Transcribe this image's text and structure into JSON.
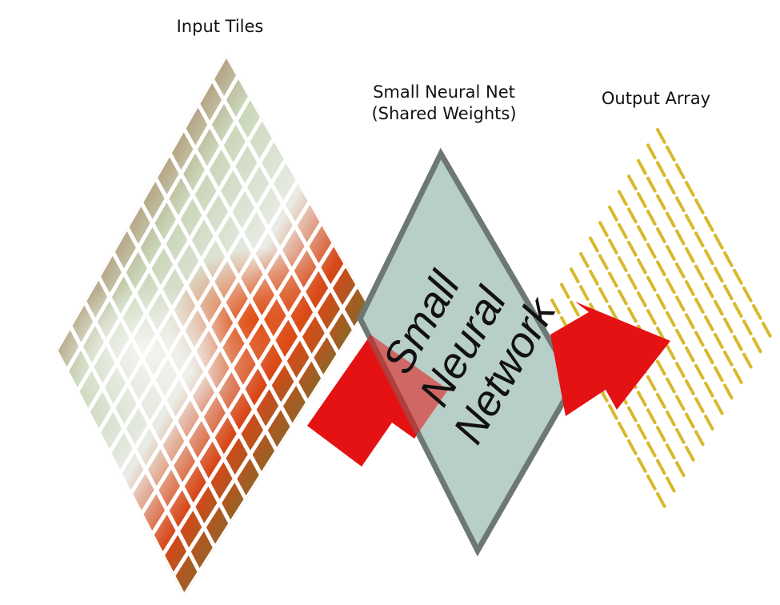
{
  "labels": {
    "input_title": "Input Tiles",
    "net_title_line1": "Small Neural Net",
    "net_title_line2": "(Shared Weights)",
    "output_title": "Output Array"
  },
  "network_box": {
    "line1": "Small",
    "line2": "Neural",
    "line3": "Network"
  },
  "colors": {
    "arrow": "#e41212",
    "box_fill": "#b8cec9",
    "box_stroke": "#6d7875",
    "output_dash": "#d8b92b"
  },
  "grid": {
    "tile_rows": 12,
    "tile_cols": 12,
    "output_columns": 12,
    "dashes_per_column": 12
  }
}
